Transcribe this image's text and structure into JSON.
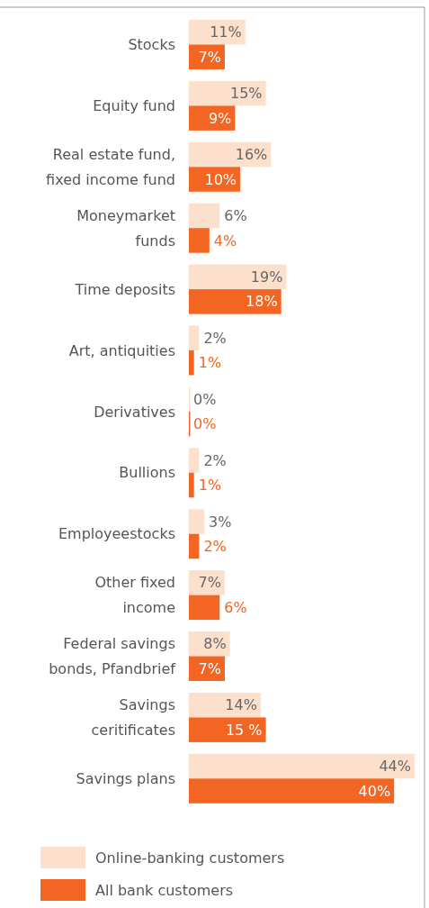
{
  "chart_data": {
    "type": "bar",
    "orientation": "horizontal",
    "categories": [
      "Stocks",
      "Equity fund",
      "Real estate fund,\nfixed income fund",
      "Moneymarket\nfunds",
      "Time deposits",
      "Art, antiquities",
      "Derivatives",
      "Bullions",
      "Employeestocks",
      "Other fixed\nincome",
      "Federal savings\nbonds, Pfandbrief",
      "Savings\nceritificates",
      "Savings plans"
    ],
    "xlim": [
      0,
      44
    ],
    "series": [
      {
        "name": "Online-banking customers",
        "color": "#fde0cc",
        "values": [
          11,
          15,
          16,
          6,
          19,
          2,
          0,
          2,
          3,
          7,
          8,
          14,
          44
        ],
        "value_labels": [
          "11%",
          "15%",
          "16%",
          "6%",
          "19%",
          "2%",
          "0%",
          "2%",
          "3%",
          "7%",
          "8%",
          "14%",
          "44%"
        ]
      },
      {
        "name": "All bank customers",
        "color": "#f26522",
        "values": [
          7,
          9,
          10,
          4,
          18,
          1,
          0,
          1,
          2,
          6,
          7,
          15,
          40
        ],
        "value_labels": [
          "7%",
          "9%",
          "10%",
          "4%",
          "18%",
          "1%",
          "0%",
          "1%",
          "2%",
          "6%",
          "7%",
          "15 %",
          "40%"
        ]
      }
    ],
    "tick_labels": false,
    "legend": "bottom"
  }
}
